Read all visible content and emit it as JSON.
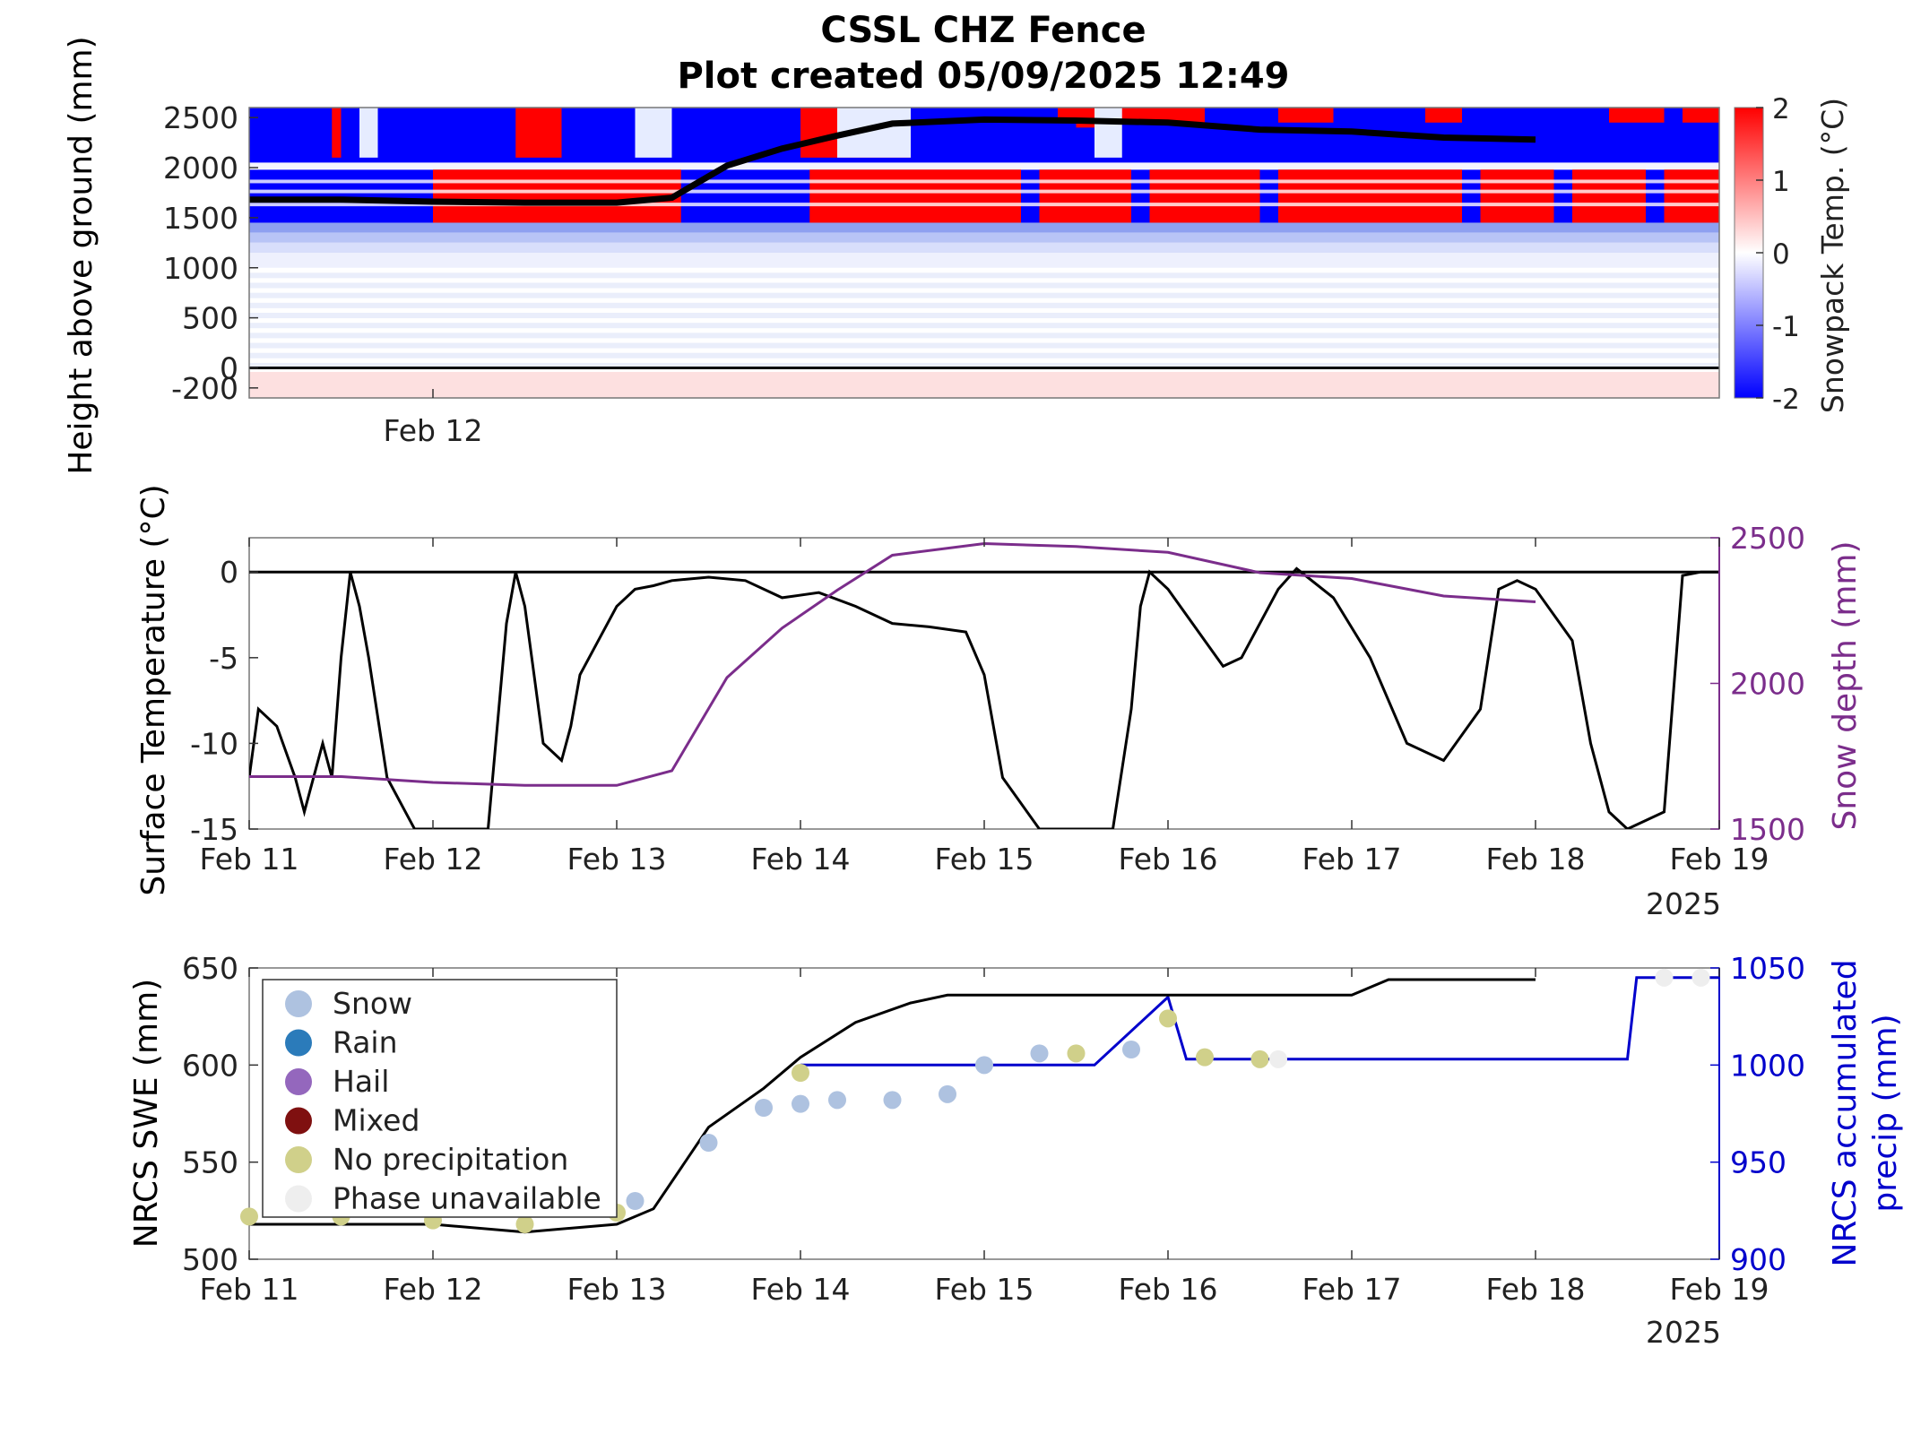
{
  "title": {
    "line1": "CSSL CHZ Fence",
    "line2": "Plot created 05/09/2025 12:49"
  },
  "colors": {
    "cold": "#0000ff",
    "warm": "#ff0000",
    "neutral": "#ffffff",
    "snow_depth": "#7b2d8b",
    "precip": "#0000cc",
    "surface_temp": "#000000",
    "phase_snow": "#aec2e0",
    "phase_rain": "#2b7bba",
    "phase_hail": "#9467bd",
    "phase_mixed": "#7f1010",
    "phase_none": "#d0d08a",
    "phase_unavailable": "#eeeeee"
  },
  "chart_data": [
    {
      "type": "heatmap",
      "ylabel": "Height above ground (mm)",
      "colorbar_label": "Snowpack Temp. (°C)",
      "colorbar_ticks": [
        "2",
        "1",
        "0",
        "-1",
        "-2"
      ],
      "color_range": [
        -2,
        2
      ],
      "y_ticks": [
        "2500",
        "2000",
        "1500",
        "1000",
        "500",
        "0",
        "-200"
      ],
      "x_ticks": [
        "Feb 12"
      ],
      "ylim": [
        -300,
        2600
      ],
      "ground_line": 0,
      "snow_surface_line": {
        "x_days": [
          0,
          0.5,
          1,
          1.5,
          2,
          2.3,
          2.6,
          2.9,
          3.2,
          3.5,
          4,
          4.5,
          5,
          5.5,
          6,
          6.5,
          7
        ],
        "y": [
          1680,
          1680,
          1660,
          1650,
          1650,
          1700,
          2020,
          2190,
          2320,
          2440,
          2480,
          2470,
          2450,
          2380,
          2360,
          2300,
          2280
        ]
      }
    },
    {
      "type": "line",
      "ylabel": "Surface Temperature (°C)",
      "y2label": "Snow depth (mm)",
      "x_ticks": [
        "Feb 11",
        "Feb 12",
        "Feb 13",
        "Feb 14",
        "Feb 15",
        "Feb 16",
        "Feb 17",
        "Feb 18",
        "Feb 19"
      ],
      "year_label": "2025",
      "y_ticks": [
        "0",
        "-5",
        "-10",
        "-15"
      ],
      "y2_ticks": [
        "2500",
        "2000",
        "1500"
      ],
      "ylim": [
        -15,
        2
      ],
      "y2lim": [
        1500,
        2500
      ],
      "series": [
        {
          "axis": "left",
          "x_days": [
            0,
            0.05,
            0.15,
            0.25,
            0.3,
            0.4,
            0.45,
            0.5,
            0.55,
            0.6,
            0.65,
            0.75,
            0.85,
            0.9,
            1.05,
            1.3,
            1.4,
            1.45,
            1.5,
            1.55,
            1.6,
            1.7,
            1.75,
            1.8,
            1.9,
            2.0,
            2.1,
            2.2,
            2.3,
            2.5,
            2.7,
            2.9,
            3.1,
            3.3,
            3.5,
            3.7,
            3.9,
            4.0,
            4.1,
            4.3,
            4.5,
            4.7,
            4.8,
            4.85,
            4.9,
            5.0,
            5.2,
            5.3,
            5.4,
            5.5,
            5.6,
            5.7,
            5.9,
            6.1,
            6.3,
            6.5,
            6.7,
            6.8,
            6.9,
            7.0,
            7.2,
            7.3,
            7.4,
            7.5,
            7.7,
            7.8,
            7.9,
            8.0
          ],
          "y": [
            -12,
            -8,
            -9,
            -12,
            -14,
            -10,
            -12,
            -5,
            0,
            -2,
            -5,
            -12,
            -14,
            -15,
            -15,
            -15,
            -3,
            0,
            -2,
            -6,
            -10,
            -11,
            -9,
            -6,
            -4,
            -2,
            -1,
            -0.8,
            -0.5,
            -0.3,
            -0.5,
            -1.5,
            -1.2,
            -2.0,
            -3.0,
            -3.2,
            -3.5,
            -6,
            -12,
            -15,
            -15,
            -15,
            -8,
            -2,
            0,
            -1,
            -4,
            -5.5,
            -5.0,
            -3.0,
            -1.0,
            0.2,
            -1.5,
            -5.0,
            -10,
            -11,
            -8,
            -1.0,
            -0.5,
            -1.0,
            -4,
            -10,
            -14,
            -15,
            -14,
            -0.2,
            0,
            0
          ]
        },
        {
          "axis": "right",
          "x_days": [
            0,
            0.5,
            1,
            1.5,
            2,
            2.3,
            2.6,
            2.9,
            3.2,
            3.5,
            4,
            4.5,
            5,
            5.5,
            6,
            6.5,
            7
          ],
          "y": [
            1680,
            1680,
            1660,
            1650,
            1650,
            1700,
            2020,
            2190,
            2320,
            2440,
            2480,
            2470,
            2450,
            2380,
            2360,
            2300,
            2280
          ]
        }
      ]
    },
    {
      "type": "scatter",
      "ylabel": "NRCS SWE (mm)",
      "y2label_line1": "NRCS accumulated",
      "y2label_line2": "precip (mm)",
      "x_ticks": [
        "Feb 11",
        "Feb 12",
        "Feb 13",
        "Feb 14",
        "Feb 15",
        "Feb 16",
        "Feb 17",
        "Feb 18",
        "Feb 19"
      ],
      "year_label": "2025",
      "y_ticks": [
        "650",
        "600",
        "550",
        "500"
      ],
      "y2_ticks": [
        "1050",
        "1000",
        "950",
        "900"
      ],
      "ylim": [
        500,
        650
      ],
      "y2lim": [
        900,
        1050
      ],
      "legend": {
        "placement": "top-left",
        "entries": [
          "Snow",
          "Rain",
          "Hail",
          "Mixed",
          "No precipitation",
          "Phase unavailable"
        ]
      },
      "swe_line": {
        "x_days": [
          0,
          0.5,
          1,
          1.5,
          2,
          2.2,
          2.5,
          2.8,
          3.0,
          3.3,
          3.6,
          3.8,
          4.0,
          4.5,
          5.0,
          5.5,
          6.0,
          6.2,
          6.5,
          7.0
        ],
        "y": [
          518,
          518,
          518,
          514,
          518,
          526,
          568,
          588,
          604,
          622,
          632,
          636,
          636,
          636,
          636,
          636,
          636,
          644,
          644,
          644
        ]
      },
      "precip_line": {
        "x_days": [
          3.0,
          3.4,
          4.0,
          4.6,
          5.0,
          5.1,
          6.0,
          6.05,
          7.0,
          7.05,
          7.5,
          7.55,
          8.0
        ],
        "y": [
          1000,
          1000,
          1000,
          1000,
          1035,
          1003,
          1003,
          1003,
          1003,
          1003,
          1003,
          1045,
          1045
        ]
      },
      "phase_points": [
        {
          "phase": "none",
          "x_days": [
            0,
            0.5,
            1,
            1.5,
            2.0
          ],
          "y": [
            522,
            522,
            520,
            518,
            524
          ]
        },
        {
          "phase": "snow",
          "x_days": [
            2.1,
            2.5,
            2.8,
            3.0,
            3.2,
            3.5,
            3.8,
            4.0,
            4.3,
            4.8
          ],
          "y": [
            530,
            560,
            578,
            580,
            582,
            582,
            585,
            600,
            606,
            608
          ]
        },
        {
          "phase": "none",
          "x_days": [
            3.0,
            4.5,
            5.0,
            5.2,
            5.5
          ],
          "y": [
            596,
            606,
            624,
            604,
            603
          ]
        },
        {
          "phase": "unavailable",
          "x_days": [
            5.6,
            7.7,
            7.9
          ],
          "y": [
            603,
            645,
            645
          ]
        }
      ]
    }
  ]
}
